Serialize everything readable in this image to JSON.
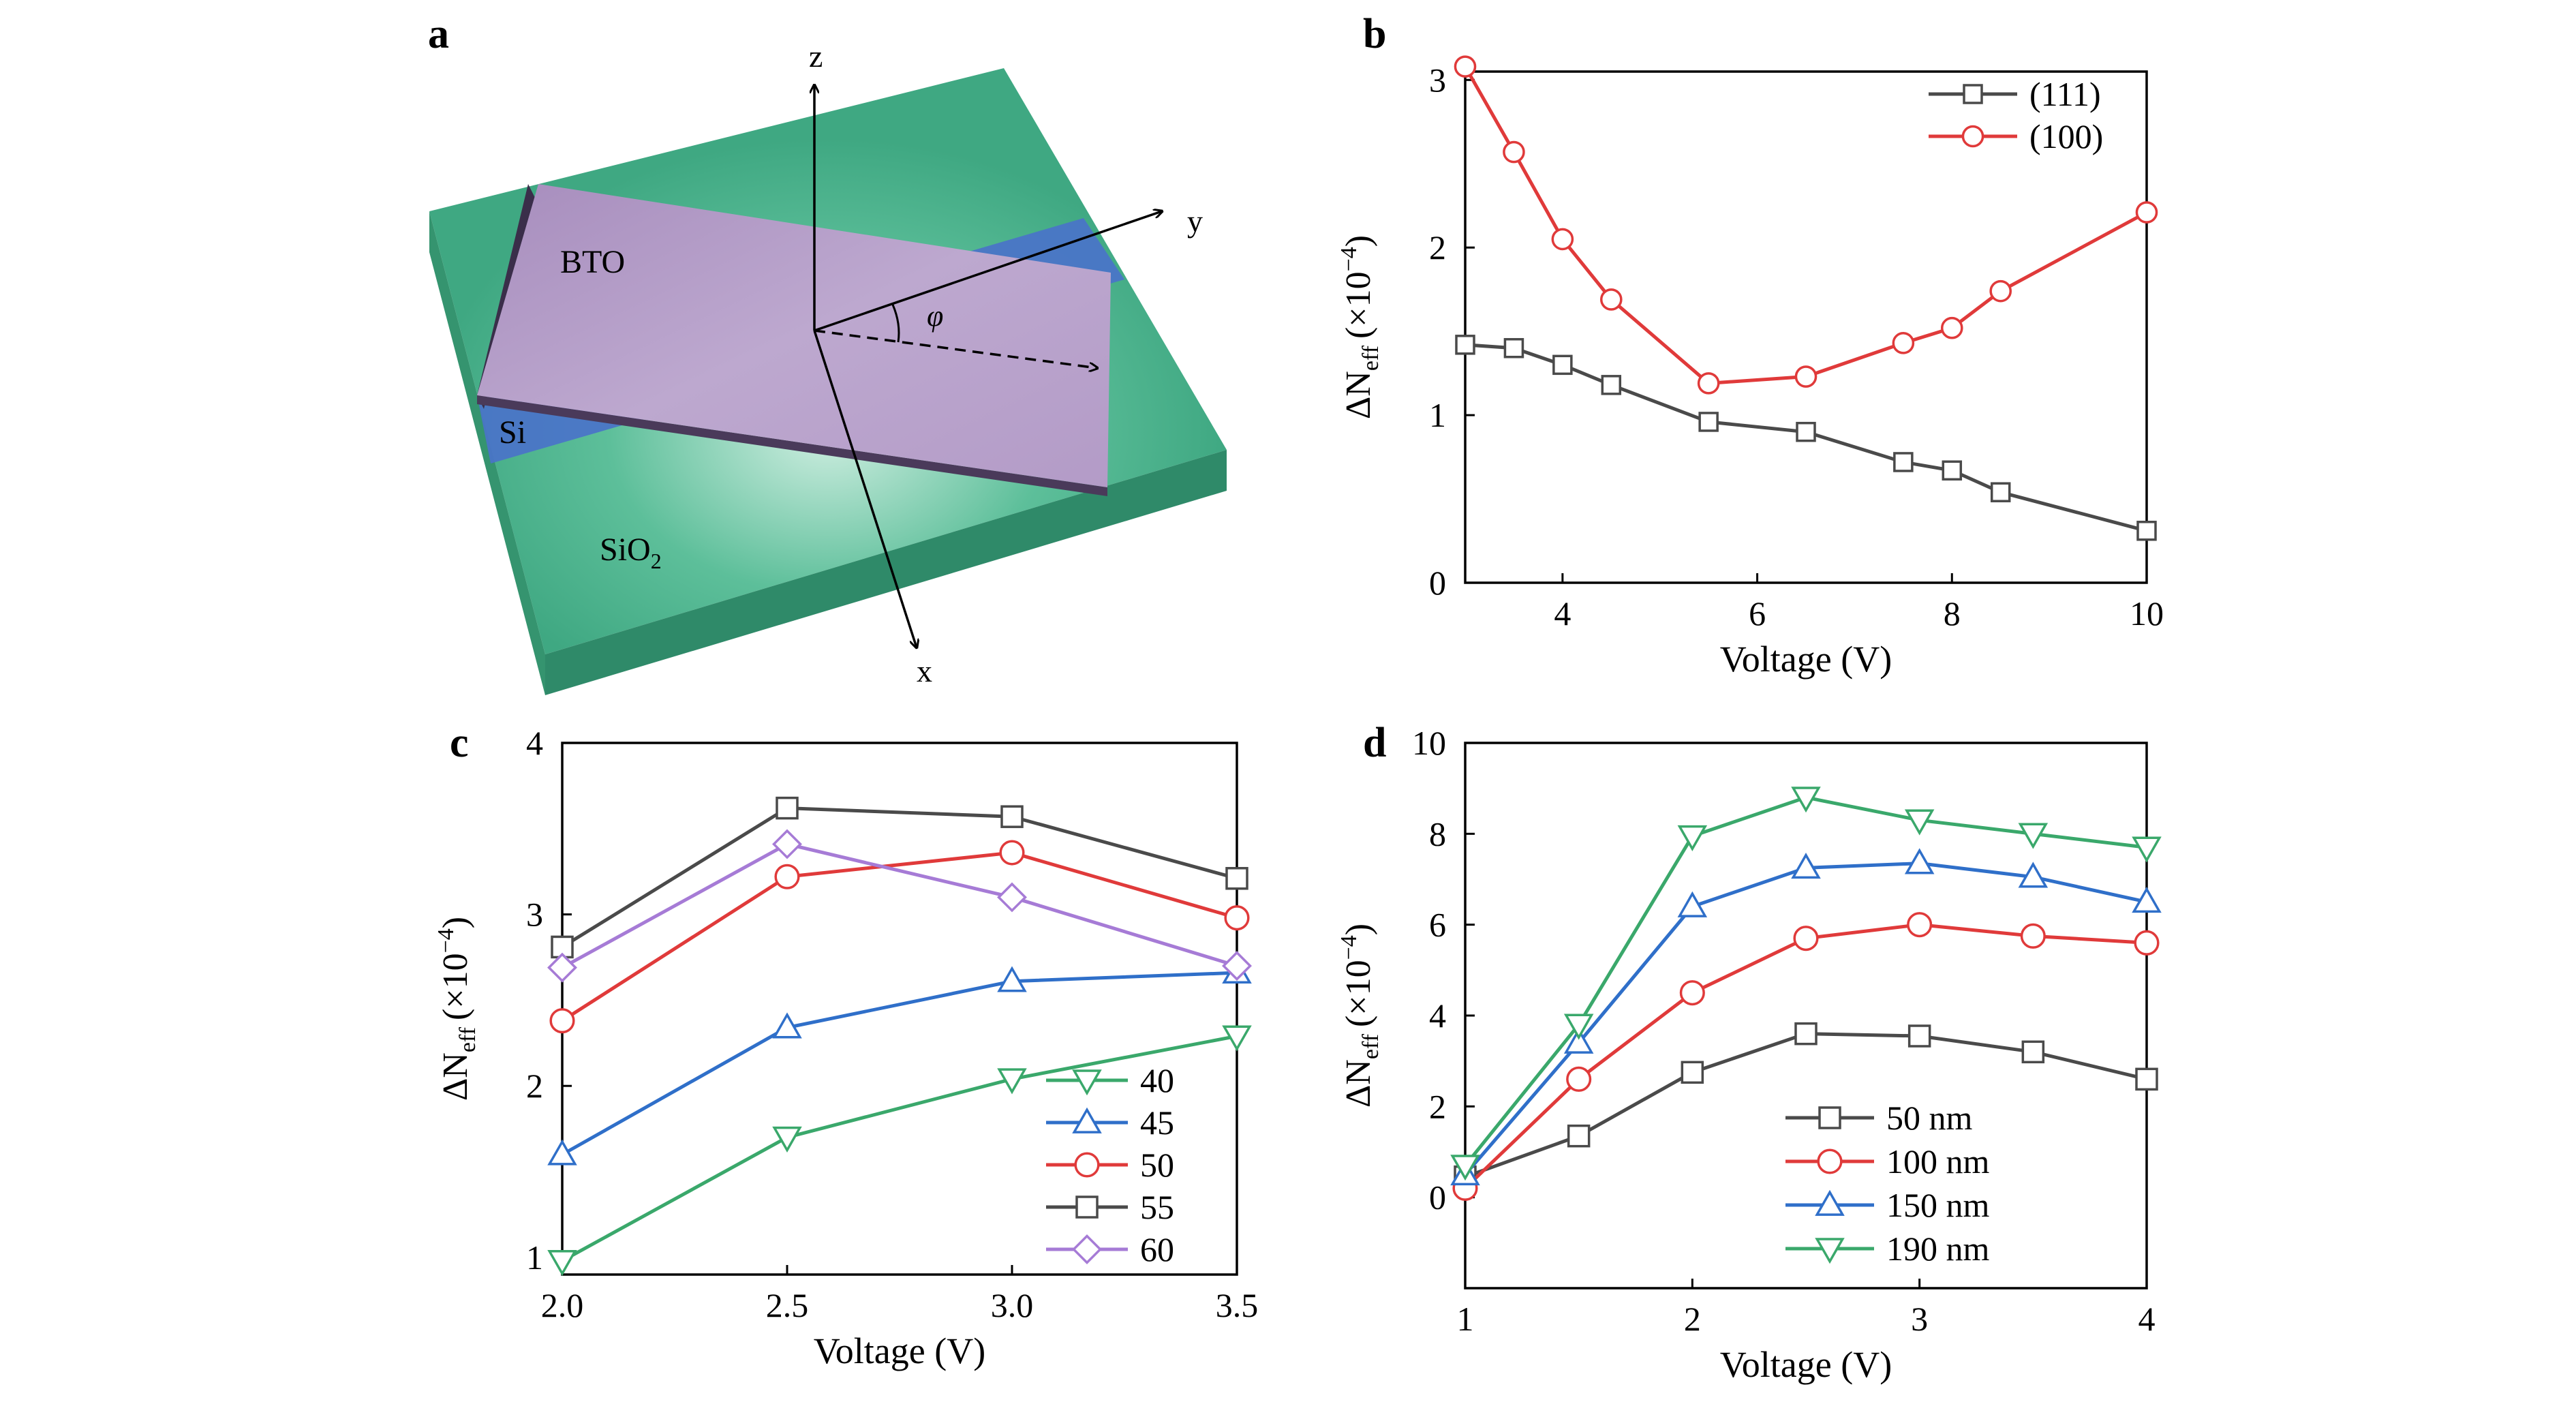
{
  "panel_labels": {
    "a": "a",
    "b": "b",
    "c": "c",
    "d": "d"
  },
  "schematic": {
    "axis_z": "z",
    "axis_y": "y",
    "axis_x": "x",
    "angle_symbol": "φ",
    "label_bto": "BTO",
    "label_si": "Si",
    "label_sio2": "SiO",
    "label_sio2_sub": "2",
    "colors": {
      "substrate": "#44b08c",
      "film": "#b59cc6",
      "silicon": "#4a73c9"
    }
  },
  "chart_data": [
    {
      "panel": "b",
      "type": "line",
      "xlabel": "Voltage (V)",
      "ylabel": "ΔN",
      "ylabel_sub": "eff",
      "ylabel_unit": "(×10",
      "ylabel_exp": "−4",
      "ylabel_close": ")",
      "xlim": [
        3,
        10
      ],
      "ylim": [
        0,
        3.05
      ],
      "xticks": [
        "4",
        "6",
        "8",
        "10"
      ],
      "yticks": [
        "0",
        "1",
        "2",
        "3"
      ],
      "legend_position": "top-right",
      "series": [
        {
          "name": "(111)",
          "marker": "square",
          "color": "#4a4a4a",
          "x": [
            3,
            3.5,
            4,
            4.5,
            5.5,
            6.5,
            7.5,
            8,
            8.5,
            10
          ],
          "y": [
            1.42,
            1.4,
            1.3,
            1.18,
            0.96,
            0.9,
            0.72,
            0.67,
            0.54,
            0.31
          ]
        },
        {
          "name": "(100)",
          "marker": "circle",
          "color": "#e03a3a",
          "x": [
            3,
            3.5,
            4,
            4.5,
            5.5,
            6.5,
            7.5,
            8,
            8.5,
            10
          ],
          "y": [
            3.08,
            2.57,
            2.05,
            1.69,
            1.19,
            1.23,
            1.43,
            1.52,
            1.74,
            2.21
          ]
        }
      ]
    },
    {
      "panel": "c",
      "type": "line",
      "xlabel": "Voltage (V)",
      "ylabel": "ΔN",
      "ylabel_sub": "eff",
      "ylabel_unit": "(×10",
      "ylabel_exp": "−4",
      "ylabel_close": ")",
      "xlim": [
        2.0,
        3.5
      ],
      "ylim": [
        0.9,
        4.0
      ],
      "xticks": [
        "2.0",
        "2.5",
        "3.0",
        "3.5"
      ],
      "yticks": [
        "1",
        "2",
        "3",
        "4"
      ],
      "legend_position": "bottom-right",
      "series": [
        {
          "name": "40",
          "marker": "triangle-down",
          "color": "#3aa86b",
          "x": [
            2.0,
            2.5,
            3.0,
            3.5
          ],
          "y": [
            0.98,
            1.7,
            2.04,
            2.29
          ]
        },
        {
          "name": "45",
          "marker": "triangle-up",
          "color": "#2f6fc9",
          "x": [
            2.0,
            2.5,
            3.0,
            3.5
          ],
          "y": [
            1.6,
            2.34,
            2.61,
            2.66
          ]
        },
        {
          "name": "50",
          "marker": "circle",
          "color": "#e03a3a",
          "x": [
            2.0,
            2.5,
            3.0,
            3.5
          ],
          "y": [
            2.38,
            3.22,
            3.36,
            2.98
          ]
        },
        {
          "name": "55",
          "marker": "square",
          "color": "#4a4a4a",
          "x": [
            2.0,
            2.5,
            3.0,
            3.5
          ],
          "y": [
            2.81,
            3.62,
            3.57,
            3.21
          ]
        },
        {
          "name": "60",
          "marker": "diamond",
          "color": "#a67bd6",
          "x": [
            2.0,
            2.5,
            3.0,
            3.5
          ],
          "y": [
            2.69,
            3.41,
            3.1,
            2.7
          ]
        }
      ]
    },
    {
      "panel": "d",
      "type": "line",
      "xlabel": "Voltage (V)",
      "ylabel": "ΔN",
      "ylabel_sub": "eff",
      "ylabel_unit": "(×10",
      "ylabel_exp": "−4",
      "ylabel_close": ")",
      "xlim": [
        1,
        4
      ],
      "ylim": [
        -2,
        10
      ],
      "xticks": [
        "1",
        "2",
        "3",
        "4"
      ],
      "yticks": [
        "0",
        "2",
        "4",
        "6",
        "8",
        "10"
      ],
      "legend_position": "bottom-center",
      "series": [
        {
          "name": "50 nm",
          "marker": "square",
          "color": "#4a4a4a",
          "x": [
            1,
            1.5,
            2,
            2.5,
            3,
            3.5,
            4
          ],
          "y": [
            0.45,
            1.35,
            2.75,
            3.6,
            3.55,
            3.2,
            2.6
          ]
        },
        {
          "name": "100 nm",
          "marker": "circle",
          "color": "#e03a3a",
          "x": [
            1,
            1.5,
            2,
            2.5,
            3,
            3.5,
            4
          ],
          "y": [
            0.2,
            2.6,
            4.5,
            5.7,
            6.0,
            5.75,
            5.6
          ]
        },
        {
          "name": "150 nm",
          "marker": "triangle-up",
          "color": "#2f6fc9",
          "x": [
            1,
            1.5,
            2,
            2.5,
            3,
            3.5,
            4
          ],
          "y": [
            0.5,
            3.4,
            6.4,
            7.25,
            7.35,
            7.05,
            6.5
          ]
        },
        {
          "name": "190 nm",
          "marker": "triangle-down",
          "color": "#3aa86b",
          "x": [
            1,
            1.5,
            2,
            2.5,
            3,
            3.5,
            4
          ],
          "y": [
            0.7,
            3.8,
            7.95,
            8.8,
            8.3,
            8.0,
            7.7
          ]
        }
      ]
    }
  ]
}
